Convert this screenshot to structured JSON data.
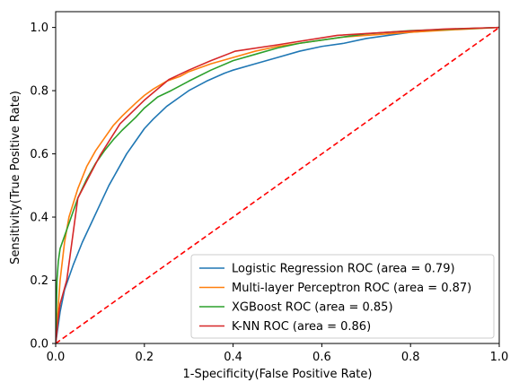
{
  "chart_data": {
    "type": "line",
    "title": "",
    "xlabel": "1-Specificity(False Positive Rate)",
    "ylabel": "Sensitivity(True Positive Rate)",
    "xlim": [
      0.0,
      1.0
    ],
    "ylim": [
      0.0,
      1.05
    ],
    "xticks": [
      "0.0",
      "0.2",
      "0.4",
      "0.6",
      "0.8",
      "1.0"
    ],
    "yticks": [
      "0.0",
      "0.2",
      "0.4",
      "0.6",
      "0.8",
      "1.0"
    ],
    "grid": false,
    "legend_position": "lower-right",
    "series": [
      {
        "name": "Logistic Regression ROC (area = 0.79)",
        "color": "#1f77b4",
        "x": [
          0,
          0.01,
          0.02,
          0.04,
          0.06,
          0.08,
          0.1,
          0.12,
          0.14,
          0.16,
          0.18,
          0.2,
          0.22,
          0.25,
          0.28,
          0.3,
          0.34,
          0.38,
          0.4,
          0.45,
          0.5,
          0.55,
          0.6,
          0.65,
          0.7,
          0.75,
          0.8,
          0.9,
          1.0
        ],
        "y": [
          0,
          0.1,
          0.17,
          0.25,
          0.32,
          0.38,
          0.44,
          0.5,
          0.55,
          0.6,
          0.64,
          0.68,
          0.71,
          0.75,
          0.78,
          0.8,
          0.83,
          0.855,
          0.865,
          0.885,
          0.905,
          0.925,
          0.94,
          0.95,
          0.965,
          0.975,
          0.985,
          0.995,
          1.0
        ]
      },
      {
        "name": "Multi-layer Perceptron ROC (area = 0.87)",
        "color": "#ff7f0e",
        "x": [
          0,
          0.005,
          0.01,
          0.02,
          0.03,
          0.05,
          0.07,
          0.09,
          0.11,
          0.13,
          0.15,
          0.18,
          0.2,
          0.22,
          0.25,
          0.28,
          0.3,
          0.35,
          0.4,
          0.45,
          0.5,
          0.55,
          0.6,
          0.65,
          0.7,
          0.8,
          0.9,
          1.0
        ],
        "y": [
          0,
          0.1,
          0.2,
          0.32,
          0.4,
          0.49,
          0.56,
          0.61,
          0.65,
          0.69,
          0.72,
          0.76,
          0.785,
          0.805,
          0.83,
          0.845,
          0.86,
          0.885,
          0.905,
          0.925,
          0.94,
          0.95,
          0.96,
          0.97,
          0.975,
          0.985,
          0.993,
          1.0
        ]
      },
      {
        "name": "XGBoost ROC (area = 0.85)",
        "color": "#2ca02c",
        "x": [
          0,
          0.003,
          0.006,
          0.01,
          0.02,
          0.03,
          0.05,
          0.07,
          0.09,
          0.11,
          0.13,
          0.15,
          0.18,
          0.2,
          0.23,
          0.26,
          0.3,
          0.35,
          0.4,
          0.45,
          0.5,
          0.55,
          0.6,
          0.65,
          0.7,
          0.8,
          0.9,
          1.0
        ],
        "y": [
          0,
          0.2,
          0.26,
          0.3,
          0.34,
          0.38,
          0.46,
          0.52,
          0.57,
          0.61,
          0.645,
          0.675,
          0.715,
          0.745,
          0.78,
          0.8,
          0.83,
          0.865,
          0.895,
          0.915,
          0.935,
          0.95,
          0.96,
          0.97,
          0.98,
          0.99,
          0.995,
          1.0
        ]
      },
      {
        "name": "K-NN ROC (area = 0.86)",
        "color": "#d62728",
        "x": [
          0,
          0.005,
          0.01,
          0.025,
          0.05,
          0.1,
          0.145,
          0.2,
          0.255,
          0.3,
          0.35,
          0.405,
          0.5,
          0.635,
          0.75,
          0.875,
          1.0
        ],
        "y": [
          0,
          0.07,
          0.125,
          0.2,
          0.46,
          0.595,
          0.695,
          0.77,
          0.835,
          0.865,
          0.895,
          0.925,
          0.945,
          0.975,
          0.985,
          0.995,
          1.0
        ]
      }
    ],
    "reference_line": {
      "x": [
        0,
        1
      ],
      "y": [
        0,
        1
      ],
      "color": "#ff0000",
      "style": "dashed"
    }
  }
}
